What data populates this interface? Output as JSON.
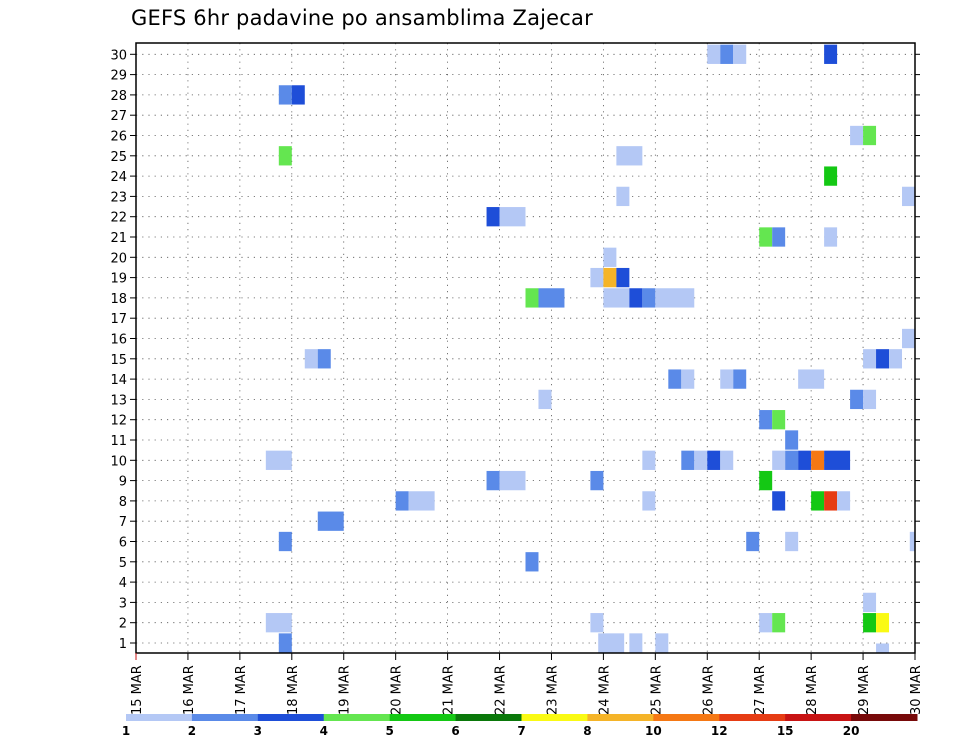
{
  "chart_data": {
    "type": "heatmap",
    "title": "GEFS 6hr padavine po ansamblima Zajecar",
    "xlabel": "",
    "ylabel": "",
    "x_tick_labels": [
      "15 MAR",
      "16 MAR",
      "17 MAR",
      "18 MAR",
      "19 MAR",
      "20 MAR",
      "21 MAR",
      "22 MAR",
      "23 MAR",
      "24 MAR",
      "25 MAR",
      "26 MAR",
      "27 MAR",
      "28 MAR",
      "29 MAR",
      "30 MAR"
    ],
    "x_range_days": [
      0,
      15
    ],
    "y_tick_labels": [
      "1",
      "2",
      "3",
      "4",
      "5",
      "6",
      "7",
      "8",
      "9",
      "10",
      "11",
      "12",
      "13",
      "14",
      "15",
      "16",
      "17",
      "18",
      "19",
      "20",
      "21",
      "22",
      "23",
      "24",
      "25",
      "26",
      "27",
      "28",
      "29",
      "30"
    ],
    "y_range_members": [
      0,
      30
    ],
    "grid": true,
    "color_levels": [
      {
        "label": "1",
        "color": "#b4c8f5"
      },
      {
        "label": "2",
        "color": "#5a8ae8"
      },
      {
        "label": "3",
        "color": "#1e4ed8"
      },
      {
        "label": "4",
        "color": "#64e650"
      },
      {
        "label": "5",
        "color": "#14c814"
      },
      {
        "label": "6",
        "color": "#0a780a"
      },
      {
        "label": "7",
        "color": "#fafa14"
      },
      {
        "label": "8",
        "color": "#f5b428"
      },
      {
        "label": "10",
        "color": "#f57814"
      },
      {
        "label": "12",
        "color": "#e63c14"
      },
      {
        "label": "15",
        "color": "#c81414"
      },
      {
        "label": "20",
        "color": "#780a0a"
      }
    ],
    "cells": [
      {
        "member": 30,
        "day": 11.0,
        "len": 0.25,
        "level": 1
      },
      {
        "member": 30,
        "day": 11.25,
        "len": 0.25,
        "level": 2
      },
      {
        "member": 30,
        "day": 11.5,
        "len": 0.25,
        "level": 1
      },
      {
        "member": 30,
        "day": 13.25,
        "len": 0.25,
        "level": 3
      },
      {
        "member": 28,
        "day": 2.75,
        "len": 0.25,
        "level": 2
      },
      {
        "member": 28,
        "day": 3.0,
        "len": 0.25,
        "level": 3
      },
      {
        "member": 26,
        "day": 13.75,
        "len": 0.25,
        "level": 1
      },
      {
        "member": 26,
        "day": 14.0,
        "len": 0.25,
        "level": 4
      },
      {
        "member": 25,
        "day": 2.75,
        "len": 0.25,
        "level": 4
      },
      {
        "member": 25,
        "day": 9.25,
        "len": 0.5,
        "level": 1
      },
      {
        "member": 24,
        "day": 13.25,
        "len": 0.25,
        "level": 5
      },
      {
        "member": 23,
        "day": 9.25,
        "len": 0.25,
        "level": 1
      },
      {
        "member": 23,
        "day": 14.75,
        "len": 0.25,
        "level": 1
      },
      {
        "member": 22,
        "day": 6.75,
        "len": 0.25,
        "level": 3
      },
      {
        "member": 22,
        "day": 7.0,
        "len": 0.5,
        "level": 1
      },
      {
        "member": 21,
        "day": 12.0,
        "len": 0.25,
        "level": 4
      },
      {
        "member": 21,
        "day": 12.25,
        "len": 0.25,
        "level": 2
      },
      {
        "member": 21,
        "day": 13.25,
        "len": 0.25,
        "level": 1
      },
      {
        "member": 20,
        "day": 9.0,
        "len": 0.25,
        "level": 1
      },
      {
        "member": 19,
        "day": 8.75,
        "len": 0.25,
        "level": 1
      },
      {
        "member": 19,
        "day": 9.0,
        "len": 0.25,
        "level": 8
      },
      {
        "member": 19,
        "day": 9.25,
        "len": 0.25,
        "level": 3
      },
      {
        "member": 18,
        "day": 7.5,
        "len": 0.25,
        "level": 4
      },
      {
        "member": 18,
        "day": 7.75,
        "len": 0.5,
        "level": 2
      },
      {
        "member": 18,
        "day": 9.0,
        "len": 0.5,
        "level": 1
      },
      {
        "member": 18,
        "day": 9.5,
        "len": 0.25,
        "level": 3
      },
      {
        "member": 18,
        "day": 9.75,
        "len": 0.25,
        "level": 2
      },
      {
        "member": 18,
        "day": 10.0,
        "len": 0.75,
        "level": 1
      },
      {
        "member": 16,
        "day": 14.75,
        "len": 0.25,
        "level": 1
      },
      {
        "member": 15,
        "day": 3.25,
        "len": 0.25,
        "level": 1
      },
      {
        "member": 15,
        "day": 3.5,
        "len": 0.25,
        "level": 2
      },
      {
        "member": 15,
        "day": 14.0,
        "len": 0.25,
        "level": 1
      },
      {
        "member": 15,
        "day": 14.25,
        "len": 0.25,
        "level": 3
      },
      {
        "member": 15,
        "day": 14.5,
        "len": 0.25,
        "level": 1
      },
      {
        "member": 14,
        "day": 10.25,
        "len": 0.25,
        "level": 2
      },
      {
        "member": 14,
        "day": 10.5,
        "len": 0.25,
        "level": 1
      },
      {
        "member": 14,
        "day": 11.25,
        "len": 0.25,
        "level": 1
      },
      {
        "member": 14,
        "day": 11.5,
        "len": 0.25,
        "level": 2
      },
      {
        "member": 14,
        "day": 12.75,
        "len": 0.5,
        "level": 1
      },
      {
        "member": 13,
        "day": 7.75,
        "len": 0.25,
        "level": 1
      },
      {
        "member": 13,
        "day": 13.75,
        "len": 0.25,
        "level": 2
      },
      {
        "member": 13,
        "day": 14.0,
        "len": 0.25,
        "level": 1
      },
      {
        "member": 12,
        "day": 12.0,
        "len": 0.25,
        "level": 2
      },
      {
        "member": 12,
        "day": 12.25,
        "len": 0.25,
        "level": 4
      },
      {
        "member": 11,
        "day": 12.5,
        "len": 0.25,
        "level": 2
      },
      {
        "member": 10,
        "day": 2.5,
        "len": 0.5,
        "level": 1
      },
      {
        "member": 10,
        "day": 9.75,
        "len": 0.25,
        "level": 1
      },
      {
        "member": 10,
        "day": 10.5,
        "len": 0.25,
        "level": 2
      },
      {
        "member": 10,
        "day": 10.75,
        "len": 0.25,
        "level": 1
      },
      {
        "member": 10,
        "day": 11.0,
        "len": 0.25,
        "level": 3
      },
      {
        "member": 10,
        "day": 11.25,
        "len": 0.25,
        "level": 1
      },
      {
        "member": 10,
        "day": 12.25,
        "len": 0.25,
        "level": 1
      },
      {
        "member": 10,
        "day": 12.5,
        "len": 0.25,
        "level": 2
      },
      {
        "member": 10,
        "day": 12.75,
        "len": 0.25,
        "level": 3
      },
      {
        "member": 10,
        "day": 13.0,
        "len": 0.25,
        "level": 10
      },
      {
        "member": 10,
        "day": 13.25,
        "len": 0.5,
        "level": 3
      },
      {
        "member": 9,
        "day": 6.75,
        "len": 0.25,
        "level": 2
      },
      {
        "member": 9,
        "day": 7.0,
        "len": 0.5,
        "level": 1
      },
      {
        "member": 9,
        "day": 8.75,
        "len": 0.25,
        "level": 2
      },
      {
        "member": 9,
        "day": 12.0,
        "len": 0.25,
        "level": 5
      },
      {
        "member": 8,
        "day": 5.0,
        "len": 0.25,
        "level": 2
      },
      {
        "member": 8,
        "day": 5.25,
        "len": 0.5,
        "level": 1
      },
      {
        "member": 8,
        "day": 9.75,
        "len": 0.25,
        "level": 1
      },
      {
        "member": 8,
        "day": 12.25,
        "len": 0.25,
        "level": 3
      },
      {
        "member": 8,
        "day": 13.0,
        "len": 0.25,
        "level": 5
      },
      {
        "member": 8,
        "day": 13.25,
        "len": 0.25,
        "level": 12
      },
      {
        "member": 8,
        "day": 13.5,
        "len": 0.25,
        "level": 1
      },
      {
        "member": 7,
        "day": 3.5,
        "len": 0.5,
        "level": 2
      },
      {
        "member": 6,
        "day": 2.75,
        "len": 0.25,
        "level": 2
      },
      {
        "member": 6,
        "day": 11.75,
        "len": 0.25,
        "level": 2
      },
      {
        "member": 6,
        "day": 12.5,
        "len": 0.25,
        "level": 1
      },
      {
        "member": 6,
        "day": 14.9,
        "len": 0.1,
        "level": 1
      },
      {
        "member": 5,
        "day": 7.5,
        "len": 0.25,
        "level": 2
      },
      {
        "member": 3,
        "day": 14.0,
        "len": 0.25,
        "level": 1
      },
      {
        "member": 2,
        "day": 2.5,
        "len": 0.5,
        "level": 1
      },
      {
        "member": 2,
        "day": 8.75,
        "len": 0.25,
        "level": 1
      },
      {
        "member": 2,
        "day": 12.0,
        "len": 0.25,
        "level": 1
      },
      {
        "member": 2,
        "day": 12.25,
        "len": 0.25,
        "level": 4
      },
      {
        "member": 2,
        "day": 14.0,
        "len": 0.25,
        "level": 5
      },
      {
        "member": 2,
        "day": 14.25,
        "len": 0.25,
        "level": 7
      },
      {
        "member": 1,
        "day": 2.75,
        "len": 0.25,
        "level": 2
      },
      {
        "member": 1,
        "day": 8.9,
        "len": 0.5,
        "level": 1
      },
      {
        "member": 1,
        "day": 9.5,
        "len": 0.25,
        "level": 1
      },
      {
        "member": 1,
        "day": 10.0,
        "len": 0.25,
        "level": 1
      },
      {
        "member": 0.5,
        "day": 14.25,
        "len": 0.25,
        "level": 1
      }
    ]
  }
}
